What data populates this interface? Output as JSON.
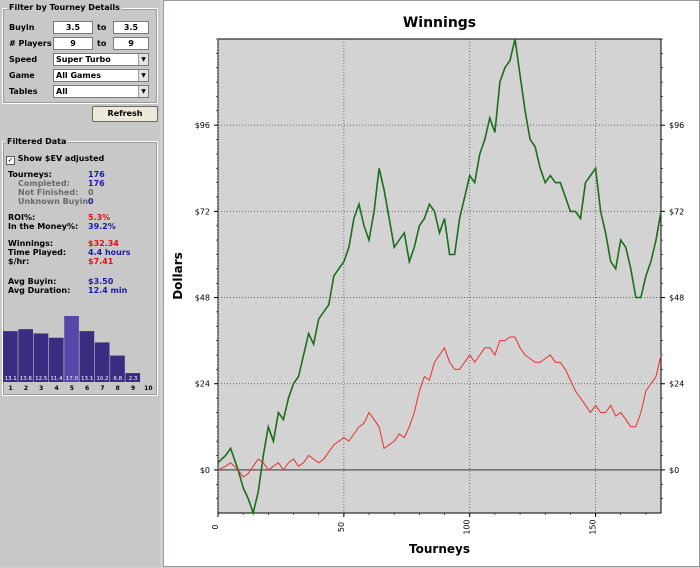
{
  "filter": {
    "title": "Filter by Tourney Details",
    "buyin": {
      "label": "Buyin",
      "from": "3.5",
      "to_label": "to",
      "to": "3.5"
    },
    "players": {
      "label": "# Players",
      "from": "9",
      "to_label": "to",
      "to": "9"
    },
    "speed": {
      "label": "Speed",
      "value": "Super Turbo"
    },
    "game": {
      "label": "Game",
      "value": "All Games"
    },
    "tables": {
      "label": "Tables",
      "value": "All"
    },
    "refresh_label": "Refresh"
  },
  "filtered": {
    "title": "Filtered Data",
    "show_sev_label": "Show $EV adjusted",
    "show_sev_checked": true,
    "stats": {
      "tourneys": {
        "label": "Tourneys:",
        "value": "176"
      },
      "completed": {
        "label": "Completed:",
        "value": "176"
      },
      "not_finished": {
        "label": "Not Finished:",
        "value": "0"
      },
      "unknown_buyin": {
        "label": "Unknown Buyin:",
        "value": "0"
      },
      "roi": {
        "label": "ROI%:",
        "value": "5.3%"
      },
      "itm": {
        "label": "In the Money%:",
        "value": "39.2%"
      },
      "winnings": {
        "label": "Winnings:",
        "value": "$32.34"
      },
      "time_played": {
        "label": "Time Played:",
        "value": "4.4 hours"
      },
      "per_hour": {
        "label": "$/hr:",
        "value": "$7.41"
      },
      "avg_buyin": {
        "label": "Avg Buyin:",
        "value": "$3.50"
      },
      "avg_duration": {
        "label": "Avg Duration:",
        "value": "12.4 min"
      }
    },
    "histogram": {
      "positions": [
        "1",
        "2",
        "3",
        "4",
        "5",
        "6",
        "7",
        "8",
        "9",
        "10"
      ],
      "values": [
        13.1,
        13.6,
        12.5,
        11.4,
        17.0,
        13.1,
        10.2,
        6.8,
        2.3,
        0
      ],
      "labels": [
        "13.1",
        "13.6",
        "12.5",
        "11.4",
        "17.0",
        "13.1",
        "10.2",
        "6.8",
        "2.3",
        ""
      ],
      "colors": {
        "bar": "#3a2c80",
        "highlight": "#5648a8"
      }
    }
  },
  "chart_data": {
    "type": "line",
    "title": "Winnings",
    "xlabel": "Tourneys",
    "ylabel": "Dollars",
    "xlim": [
      0,
      176
    ],
    "ylim": [
      -12,
      120
    ],
    "x_ticks": [
      0,
      50,
      100,
      150
    ],
    "y_ticks": [
      0,
      24,
      48,
      72,
      96
    ],
    "y_tick_labels": [
      "$0",
      "$24",
      "$48",
      "$72",
      "$96"
    ],
    "grid": true,
    "series": [
      {
        "color": "#1a6e1a",
        "x": [
          0,
          3,
          5,
          8,
          10,
          12,
          14,
          16,
          18,
          20,
          22,
          24,
          26,
          28,
          30,
          32,
          34,
          36,
          38,
          40,
          42,
          44,
          46,
          48,
          50,
          52,
          54,
          56,
          58,
          60,
          62,
          64,
          66,
          68,
          70,
          72,
          74,
          76,
          78,
          80,
          82,
          84,
          86,
          88,
          90,
          92,
          94,
          96,
          98,
          100,
          102,
          104,
          106,
          108,
          110,
          112,
          114,
          116,
          118,
          120,
          122,
          124,
          126,
          128,
          130,
          132,
          134,
          136,
          138,
          140,
          142,
          144,
          146,
          148,
          150,
          152,
          154,
          156,
          158,
          160,
          162,
          164,
          166,
          168,
          170,
          172,
          174,
          176
        ],
        "y": [
          2,
          4,
          6,
          0,
          -5,
          -8,
          -12,
          -6,
          4,
          12,
          8,
          16,
          14,
          20,
          24,
          26,
          32,
          38,
          35,
          42,
          44,
          46,
          54,
          56,
          58,
          62,
          70,
          74,
          68,
          64,
          72,
          84,
          78,
          70,
          62,
          64,
          66,
          58,
          62,
          68,
          70,
          74,
          72,
          66,
          70,
          60,
          60,
          70,
          76,
          82,
          80,
          88,
          92,
          98,
          94,
          108,
          112,
          114,
          120,
          110,
          100,
          92,
          90,
          84,
          80,
          82,
          80,
          80,
          76,
          72,
          72,
          70,
          80,
          82,
          84,
          72,
          66,
          58,
          56,
          64,
          62,
          56,
          48,
          48,
          54,
          58,
          64,
          72
        ]
      },
      {
        "color": "#e83030",
        "x": [
          0,
          3,
          5,
          8,
          10,
          12,
          14,
          16,
          18,
          20,
          22,
          24,
          26,
          28,
          30,
          32,
          34,
          36,
          38,
          40,
          42,
          44,
          46,
          48,
          50,
          52,
          54,
          56,
          58,
          60,
          62,
          64,
          66,
          68,
          70,
          72,
          74,
          76,
          78,
          80,
          82,
          84,
          86,
          88,
          90,
          92,
          94,
          96,
          98,
          100,
          102,
          104,
          106,
          108,
          110,
          112,
          114,
          116,
          118,
          120,
          122,
          124,
          126,
          128,
          130,
          132,
          134,
          136,
          138,
          140,
          142,
          144,
          146,
          148,
          150,
          152,
          154,
          156,
          158,
          160,
          162,
          164,
          166,
          168,
          170,
          172,
          174,
          176
        ],
        "y": [
          0,
          1,
          2,
          0,
          -2,
          -1,
          1,
          3,
          2,
          0,
          1,
          2,
          0,
          2,
          3,
          1,
          2,
          4,
          3,
          2,
          3,
          5,
          7,
          8,
          9,
          8,
          10,
          12,
          13,
          16,
          14,
          12,
          6,
          7,
          8,
          10,
          9,
          12,
          16,
          22,
          26,
          25,
          30,
          32,
          34,
          30,
          28,
          28,
          30,
          32,
          30,
          32,
          34,
          34,
          32,
          36,
          36,
          37,
          37,
          34,
          32,
          31,
          30,
          30,
          31,
          32,
          30,
          30,
          28,
          25,
          22,
          20,
          18,
          16,
          18,
          16,
          16,
          18,
          15,
          16,
          14,
          12,
          12,
          16,
          22,
          24,
          26,
          32
        ]
      }
    ]
  }
}
